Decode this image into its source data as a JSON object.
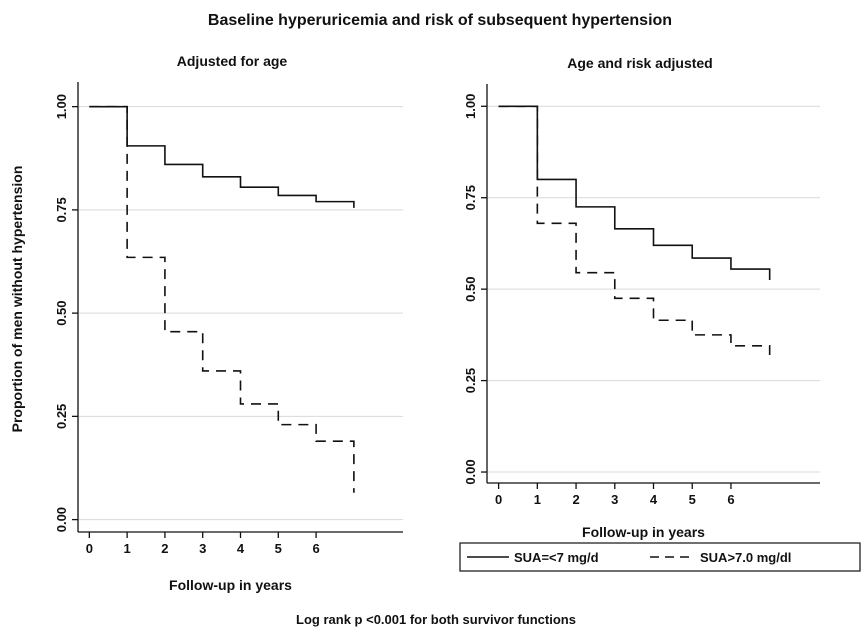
{
  "figure": {
    "title": "Baseline hyperuricemia and risk of subsequent hypertension",
    "footnote": "Log rank p <0.001 for both  survivor functions"
  },
  "legend": {
    "entries": [
      {
        "label": "SUA=<7 mg/d",
        "style": "solid"
      },
      {
        "label": "SUA>7.0 mg/dl",
        "style": "dashed"
      }
    ]
  },
  "chart_data": [
    {
      "type": "line",
      "step": true,
      "title": "Adjusted for age",
      "xlabel": "Follow-up in years",
      "ylabel": "Proportion of men without hypertension",
      "xlim": [
        -0.3,
        8.3
      ],
      "ylim": [
        -0.03,
        1.05
      ],
      "x_ticks": [
        0,
        1,
        2,
        3,
        4,
        5,
        6
      ],
      "x_tick_labels": [
        "0",
        "1",
        "2",
        "3",
        "4",
        "5",
        "6"
      ],
      "y_ticks": [
        0,
        0.25,
        0.5,
        0.75,
        1.0
      ],
      "y_tick_labels": [
        "0.00",
        "0.25",
        "0.50",
        "0.75",
        "1.00"
      ],
      "grid": true,
      "series": [
        {
          "name": "SUA=<7 mg/d",
          "style": "solid",
          "x": [
            0,
            1,
            2,
            3,
            4,
            5,
            6,
            7
          ],
          "y": [
            1.0,
            0.905,
            0.86,
            0.83,
            0.805,
            0.785,
            0.77,
            0.755
          ]
        },
        {
          "name": "SUA>7.0 mg/dl",
          "style": "dashed",
          "x": [
            0,
            1,
            2,
            3,
            4,
            5,
            6,
            7
          ],
          "y": [
            1.0,
            0.635,
            0.455,
            0.36,
            0.28,
            0.23,
            0.19,
            0.065
          ]
        }
      ]
    },
    {
      "type": "line",
      "step": true,
      "title": "Age and risk adjusted",
      "xlabel": "Follow-up in years",
      "ylabel": "",
      "xlim": [
        -0.3,
        8.3
      ],
      "ylim": [
        -0.03,
        1.05
      ],
      "x_ticks": [
        0,
        1,
        2,
        3,
        4,
        5,
        6
      ],
      "x_tick_labels": [
        "0",
        "1",
        "2",
        "3",
        "4",
        "5",
        "6"
      ],
      "y_ticks": [
        0,
        0.25,
        0.5,
        0.75,
        1.0
      ],
      "y_tick_labels": [
        "0.00",
        "0.25",
        "0.50",
        "0.75",
        "1.00"
      ],
      "grid": true,
      "series": [
        {
          "name": "SUA=<7 mg/d",
          "style": "solid",
          "x": [
            0,
            1,
            2,
            3,
            4,
            5,
            6,
            7
          ],
          "y": [
            1.0,
            0.8,
            0.725,
            0.665,
            0.62,
            0.585,
            0.555,
            0.525
          ]
        },
        {
          "name": "SUA>7.0 mg/dl",
          "style": "dashed",
          "x": [
            0,
            1,
            2,
            3,
            4,
            5,
            6,
            7
          ],
          "y": [
            1.0,
            0.68,
            0.545,
            0.475,
            0.415,
            0.375,
            0.345,
            0.32
          ]
        }
      ]
    }
  ]
}
